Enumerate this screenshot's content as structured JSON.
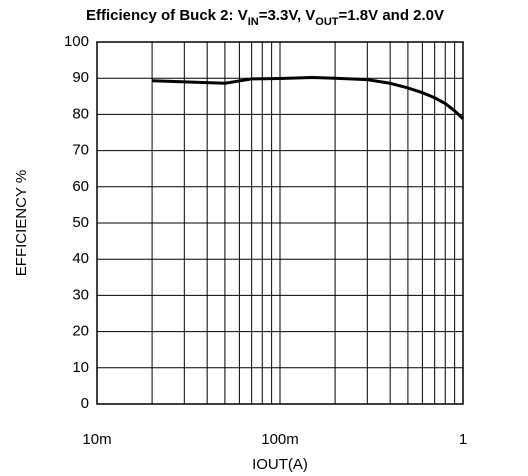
{
  "chart_data": {
    "type": "line",
    "title_parts": [
      {
        "text": "Efficiency of Buck 2: V",
        "sub": false
      },
      {
        "text": "IN",
        "sub": true
      },
      {
        "text": "=3.3V, V",
        "sub": false
      },
      {
        "text": "OUT",
        "sub": true
      },
      {
        "text": "=1.8V and 2.0V",
        "sub": false
      }
    ],
    "x_label": "IOUT(A)",
    "y_label": "EFFICIENCY %",
    "x_log": true,
    "grid": true,
    "xlim": [
      0.01,
      1
    ],
    "ylim": [
      0,
      100
    ],
    "xticks": [
      {
        "value": 0.01,
        "label": "10m"
      },
      {
        "value": 0.1,
        "label": "100m"
      },
      1
    ],
    "xgrid_minor": [
      0.02,
      0.03,
      0.04,
      0.05,
      0.06,
      0.07,
      0.08,
      0.09,
      0.2,
      0.3,
      0.4,
      0.5,
      0.6,
      0.7,
      0.8,
      0.9
    ],
    "yticks": [
      0,
      10,
      20,
      30,
      40,
      50,
      60,
      70,
      80,
      90,
      100
    ],
    "series": [
      {
        "name": "Efficiency",
        "color": "#000000",
        "x": [
          0.02,
          0.05,
          0.07,
          0.1,
          0.15,
          0.2,
          0.3,
          0.4,
          0.5,
          0.6,
          0.7,
          0.8,
          0.9,
          1
        ],
        "values": [
          89.3,
          88.6,
          89.8,
          89.9,
          90.2,
          90,
          89.6,
          88.6,
          87.3,
          86,
          84.6,
          83,
          81,
          78.8
        ]
      }
    ]
  }
}
